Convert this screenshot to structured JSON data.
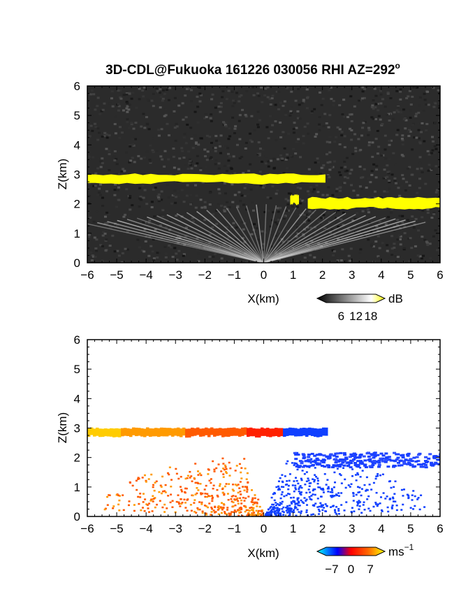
{
  "figure": {
    "title_main": "3D-CDL@Fukuoka 161226 030056 RHI AZ=292",
    "title_degree": "o"
  },
  "chart_data": [
    {
      "type": "heatmap",
      "panel": "reflectivity",
      "xlabel": "X(km)",
      "ylabel": "Z(km)",
      "xlim": [
        -6,
        6
      ],
      "ylim": [
        0,
        6
      ],
      "xticks": [
        "−6",
        "−5",
        "−4",
        "−3",
        "−2",
        "−1",
        "0",
        "1",
        "2",
        "3",
        "4",
        "5",
        "6"
      ],
      "yticks": [
        "0",
        "1",
        "2",
        "3",
        "4",
        "5",
        "6"
      ],
      "colorbar": {
        "unit": "dB",
        "ticks": [
          "6",
          "12",
          "18"
        ],
        "tick_values": [
          6,
          12,
          18
        ],
        "range": [
          0,
          20
        ],
        "colors": [
          "#000000",
          "#ffffff",
          "#ffff00"
        ]
      },
      "background": "noise",
      "layers": [
        {
          "feature": "cloud layer",
          "x": [
            -6.0,
            2.1
          ],
          "z_bottom": 2.72,
          "z_top": 3.0,
          "level": "high"
        },
        {
          "feature": "cloud layer",
          "x": [
            1.5,
            6.0
          ],
          "z_bottom": 1.85,
          "z_top": 2.2,
          "level": "high"
        },
        {
          "feature": "cloud fragment",
          "x": [
            0.9,
            1.2
          ],
          "z_bottom": 2.0,
          "z_top": 2.3,
          "level": "high"
        },
        {
          "feature": "fan of beams",
          "origin": [
            0,
            0
          ],
          "x": [
            -6.0,
            5.5
          ],
          "z_top": 2.0,
          "level": "low"
        }
      ]
    },
    {
      "type": "heatmap",
      "panel": "velocity",
      "xlabel": "X(km)",
      "ylabel": "Z(km)",
      "xlim": [
        -6,
        6
      ],
      "ylim": [
        0,
        6
      ],
      "xticks": [
        "−6",
        "−5",
        "−4",
        "−3",
        "−2",
        "−1",
        "0",
        "1",
        "2",
        "3",
        "4",
        "5",
        "6"
      ],
      "yticks": [
        "0",
        "1",
        "2",
        "3",
        "4",
        "5",
        "6"
      ],
      "colorbar": {
        "unit_base": "ms",
        "unit_exp": "−1",
        "ticks": [
          "−7",
          "0",
          "7"
        ],
        "tick_values": [
          -7,
          0,
          7
        ],
        "range": [
          -9,
          9
        ],
        "colors": [
          "#00ffff",
          "#0000ff",
          "#ff0000",
          "#ffff00"
        ]
      },
      "layers": [
        {
          "feature": "upper layer",
          "x": [
            -6.0,
            2.1
          ],
          "z_bottom": 2.72,
          "z_top": 3.0,
          "velocity": [
            7,
            -5
          ]
        },
        {
          "feature": "lower layer",
          "x": [
            1.0,
            6.0
          ],
          "z_bottom": 1.7,
          "z_top": 2.2,
          "velocity": -6
        },
        {
          "feature": "fan echoes",
          "origin": [
            0,
            0
          ],
          "x": [
            -5.5,
            5.5
          ],
          "z_top": 2.0,
          "velocity_left": 3,
          "velocity_right": -6
        }
      ]
    }
  ]
}
